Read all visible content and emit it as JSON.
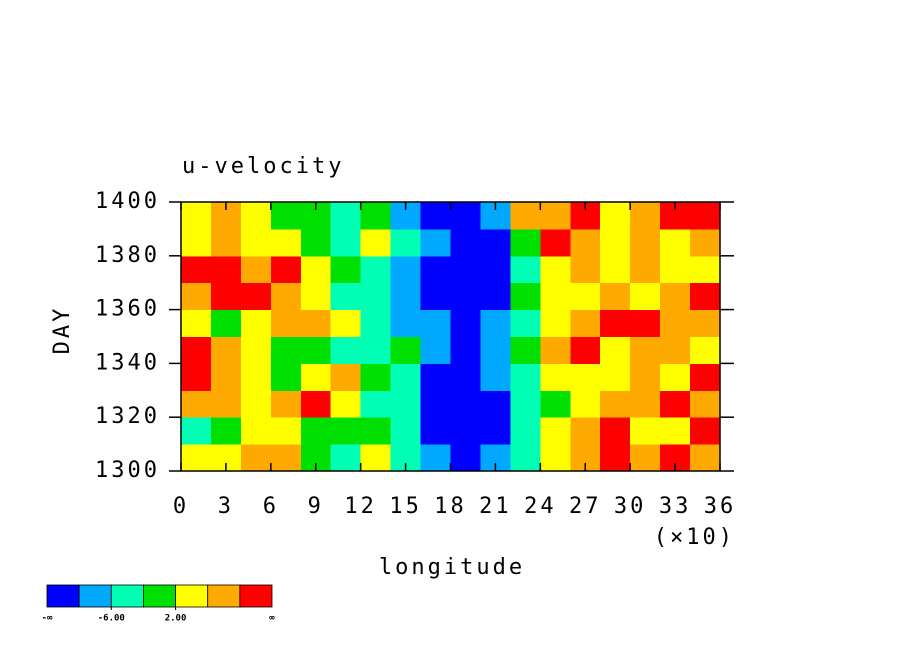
{
  "chart_data": {
    "type": "contour",
    "title": "u-velocity",
    "xlabel": "longitude",
    "ylabel": "DAY",
    "x_multiplier": "(×10)",
    "x": [
      1,
      3,
      5,
      7,
      9,
      11,
      13,
      15,
      17,
      19,
      21,
      23,
      25,
      27,
      29,
      31,
      33,
      35
    ],
    "y": [
      1305,
      1315,
      1325,
      1335,
      1345,
      1355,
      1365,
      1375,
      1385,
      1395
    ],
    "z": [
      [
        2,
        4,
        8,
        6,
        0,
        -3,
        4,
        -4,
        -7,
        -12,
        -8,
        -3,
        5,
        9,
        11,
        8,
        12,
        6
      ],
      [
        -3,
        1,
        5,
        3,
        -2,
        1,
        -1,
        -5,
        -11,
        -13,
        -12,
        -6,
        4,
        7,
        12,
        3,
        5,
        13
      ],
      [
        6,
        9,
        4,
        8,
        12,
        3,
        -3,
        -6,
        -12,
        -14,
        -11,
        -4,
        1,
        3,
        8,
        6,
        10,
        7
      ],
      [
        11,
        7,
        2,
        -1,
        4,
        7,
        0,
        -5,
        -13,
        -12,
        -10,
        -5,
        3,
        5,
        2,
        7,
        4,
        11
      ],
      [
        12,
        8,
        3,
        -2,
        1,
        -3,
        -4,
        -2,
        -9,
        -11,
        -8,
        -2,
        8,
        11,
        4,
        6,
        9,
        5
      ],
      [
        3,
        -1,
        5,
        9,
        7,
        2,
        -5,
        -8,
        -10,
        -13,
        -9,
        -3,
        5,
        7,
        12,
        13,
        8,
        6
      ],
      [
        8,
        12,
        11,
        6,
        4,
        -3,
        -6,
        -7,
        -12,
        -14,
        -13,
        -1,
        4,
        2,
        9,
        5,
        7,
        10
      ],
      [
        13,
        12,
        7,
        11,
        3,
        -2,
        -4,
        -9,
        -13,
        -15,
        -12,
        -4,
        2,
        6,
        3,
        8,
        5,
        4
      ],
      [
        4,
        6,
        2,
        5,
        -1,
        -4,
        3,
        -5,
        -9,
        -12,
        -11,
        1,
        11,
        8,
        5,
        7,
        3,
        6
      ],
      [
        3,
        7,
        5,
        1,
        -2,
        -6,
        0,
        -7,
        -11,
        -13,
        -8,
        6,
        9,
        12,
        4,
        6,
        11,
        13
      ]
    ],
    "levels": [
      -10,
      -6,
      -2,
      2,
      6,
      10
    ],
    "colors": [
      "#0000ff",
      "#00a8ff",
      "#00ffb4",
      "#00e000",
      "#ffff00",
      "#ffaa00",
      "#ff0000"
    ],
    "colorbar_ends": [
      "-∞",
      "∞"
    ],
    "colorbar_ticks": [
      {
        "value": -6,
        "label": "-6.00"
      },
      {
        "value": 2,
        "label": "2.00"
      }
    ],
    "xlim": [
      0,
      36
    ],
    "xticks": [
      0,
      3,
      6,
      9,
      12,
      15,
      18,
      21,
      24,
      27,
      30,
      33,
      36
    ],
    "ylim": [
      1300,
      1400
    ],
    "yticks": [
      1300,
      1320,
      1340,
      1360,
      1380,
      1400
    ]
  }
}
